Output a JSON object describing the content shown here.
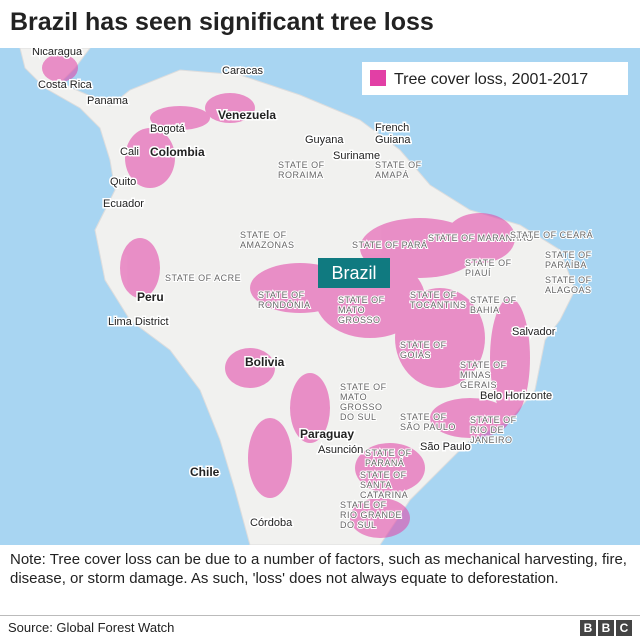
{
  "header": {
    "title": "Brazil has seen significant tree loss"
  },
  "legend": {
    "label": "Tree cover loss, 2001-2017"
  },
  "highlight": "Brazil",
  "places": [
    "Nicaragua",
    "Costa Rica",
    "Panama",
    "Caracas",
    "Venezuela",
    "Bogotá",
    "Cali",
    "Colombia",
    "Quito",
    "Ecuador",
    "Guyana",
    "Suriname",
    "French",
    "Guiana",
    "Peru",
    "Lima District",
    "Bolivia",
    "Salvador",
    "Belo Horizonte",
    "Paraguay",
    "Asunción",
    "São Paulo",
    "Chile",
    "Córdoba"
  ],
  "states": [
    [
      "STATE OF",
      "RORAIMA"
    ],
    [
      "STATE OF",
      "AMAPÁ"
    ],
    [
      "STATE OF",
      "AMAZONAS"
    ],
    [
      "STATE OF PARÁ"
    ],
    [
      "STATE OF MARANHÃO"
    ],
    [
      "STATE OF CEARÁ"
    ],
    [
      "STATE OF",
      "PIAUÍ"
    ],
    [
      "STATE OF",
      "PARAÍBA"
    ],
    [
      "STATE OF",
      "ALAGOAS"
    ],
    [
      "STATE OF ACRE"
    ],
    [
      "STATE OF",
      "RONDÔNIA"
    ],
    [
      "STATE OF",
      "MATO",
      "GROSSO"
    ],
    [
      "STATE OF",
      "TOCANTINS"
    ],
    [
      "STATE OF",
      "BAHIA"
    ],
    [
      "STATE OF",
      "GOIÁS"
    ],
    [
      "STATE OF",
      "MINAS",
      "GERAIS"
    ],
    [
      "STATE OF",
      "MATO",
      "GROSSO",
      "DO SUL"
    ],
    [
      "STATE OF",
      "SÃO PAULO"
    ],
    [
      "STATE OF",
      "RIO DE",
      "JANEIRO"
    ],
    [
      "STATE OF",
      "PARANÁ"
    ],
    [
      "STATE OF",
      "SANTA",
      "CATARINA"
    ],
    [
      "STATE OF",
      "RIO GRANDE",
      "DO SUL"
    ]
  ],
  "note": "Note: Tree cover loss can be due to a number of factors, such as mechanical harvesting, fire, disease, or storm damage. As such, 'loss' does not always equate to deforestation.",
  "source": "Source: Global Forest Watch",
  "logo": [
    "B",
    "B",
    "C"
  ]
}
